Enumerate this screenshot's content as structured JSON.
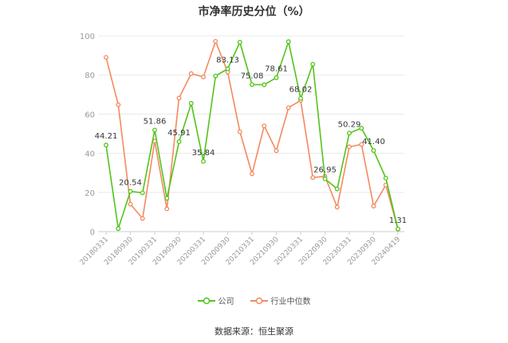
{
  "chart_data": {
    "type": "line",
    "title": "市净率历史分位（%）",
    "ylim": [
      0,
      100
    ],
    "yticks": [
      0,
      20,
      40,
      60,
      80,
      100
    ],
    "x_labels": [
      "20180331",
      "20180930",
      "20190331",
      "20190930",
      "20200331",
      "20200930",
      "20210331",
      "20210930",
      "20220331",
      "20220930",
      "20230331",
      "20230930",
      "20240419"
    ],
    "grid": true,
    "legend_position": "bottom",
    "series": [
      {
        "name": "公司",
        "color": "#52c41a",
        "values": [
          44.21,
          1.5,
          20.54,
          19.8,
          51.86,
          17.0,
          45.91,
          65.5,
          35.84,
          79.5,
          83.13,
          96.7,
          75.08,
          75.0,
          78.61,
          97.0,
          68.02,
          85.5,
          26.95,
          21.8,
          50.29,
          52.8,
          41.4,
          27.3,
          1.31
        ],
        "point_labels": {
          "0": "44.21",
          "2": "20.54",
          "4": "51.86",
          "6": "45.91",
          "8": "35.84",
          "10": "83.13",
          "12": "75.08",
          "14": "78.61",
          "16": "68.02",
          "18": "26.95",
          "20": "50.29",
          "22": "41.40",
          "24": "1.31"
        }
      },
      {
        "name": "行业中位数",
        "color": "#f4895f",
        "values": [
          89.0,
          64.8,
          14.0,
          6.7,
          46.2,
          11.6,
          68.2,
          80.7,
          79.0,
          97.2,
          81.5,
          51.0,
          29.5,
          54.0,
          41.3,
          63.3,
          67.0,
          27.6,
          28.2,
          12.5,
          43.3,
          44.5,
          13.0,
          23.8,
          1.31
        ]
      }
    ]
  },
  "legend": {
    "company": "公司",
    "industry": "行业中位数"
  },
  "source": "数据来源：恒生聚源"
}
